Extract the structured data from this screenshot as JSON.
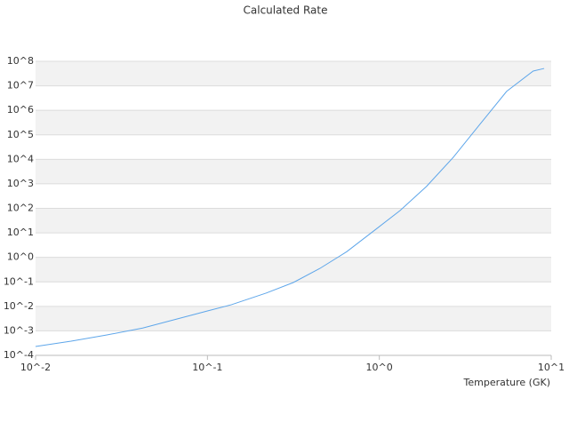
{
  "chart_data": {
    "type": "line",
    "title": "Calculated Rate",
    "x_label": "Temperature (GK)",
    "x": [
      0.01,
      0.0161,
      0.026,
      0.042,
      0.067,
      0.1,
      0.138,
      0.22,
      0.316,
      0.45,
      0.646,
      1,
      1.32,
      1.88,
      2.69,
      3.85,
      5.5,
      7.85,
      9.1
    ],
    "values": [
      0.00023,
      0.00038,
      0.00068,
      0.0013,
      0.0031,
      0.0065,
      0.0117,
      0.035,
      0.094,
      0.35,
      1.7,
      18,
      81,
      780,
      12000,
      270000,
      5900000,
      40000000,
      51000000
    ],
    "color": "#5ea6ea",
    "xscale": "log",
    "yscale": "log",
    "xlim": [
      0.01,
      10
    ],
    "xticks": [
      {
        "value": 0.01,
        "label": "10^-2"
      },
      {
        "value": 0.1,
        "label": "10^-1"
      },
      {
        "value": 1,
        "label": "10^0"
      },
      {
        "value": 10,
        "label": "10^1"
      }
    ],
    "ylim": [
      0.0001,
      100000000
    ],
    "yticks": [
      {
        "value": 0.0001,
        "label": "10^-4"
      },
      {
        "value": 0.001,
        "label": "10^-3"
      },
      {
        "value": 0.01,
        "label": "10^-2"
      },
      {
        "value": 0.1,
        "label": "10^-1"
      },
      {
        "value": 1,
        "label": "10^0"
      },
      {
        "value": 10,
        "label": "10^1"
      },
      {
        "value": 100,
        "label": "10^2"
      },
      {
        "value": 1000,
        "label": "10^3"
      },
      {
        "value": 10000,
        "label": "10^4"
      },
      {
        "value": 100000,
        "label": "10^5"
      },
      {
        "value": 1000000,
        "label": "10^6"
      },
      {
        "value": 10000000,
        "label": "10^7"
      },
      {
        "value": 100000000,
        "label": "10^8"
      }
    ],
    "grid": true
  }
}
